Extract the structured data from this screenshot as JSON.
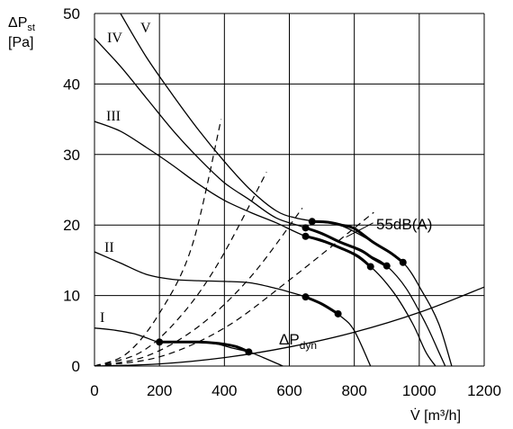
{
  "chart_data": {
    "type": "line",
    "title": "",
    "xlabel_main": "V̇",
    "xlabel_unit": "[m³/h]",
    "ylabel_line1_main": "ΔP",
    "ylabel_line1_sub": "st",
    "ylabel_line2": "[Pa]",
    "xlim": [
      0,
      1200
    ],
    "ylim": [
      0,
      50
    ],
    "xticks": [
      0,
      200,
      400,
      600,
      800,
      1000,
      1200
    ],
    "yticks": [
      0,
      10,
      20,
      30,
      40,
      50
    ],
    "grid": true,
    "series": [
      {
        "name": "I",
        "x": [
          0,
          60,
          120,
          160,
          200,
          260,
          320,
          380,
          420,
          475,
          520,
          560,
          580
        ],
        "y": [
          5.4,
          5.1,
          4.6,
          4.0,
          3.4,
          3.4,
          3.4,
          3.1,
          2.6,
          2.0,
          1.2,
          0.4,
          0
        ]
      },
      {
        "name": "II",
        "x": [
          0,
          80,
          160,
          240,
          320,
          400,
          480,
          560,
          600,
          650,
          700,
          760,
          800,
          850
        ],
        "y": [
          16.2,
          14.6,
          13.0,
          12.3,
          12.1,
          12.0,
          11.8,
          11.0,
          10.5,
          9.8,
          8.8,
          7.0,
          5.0,
          0
        ]
      },
      {
        "name": "III",
        "x": [
          0,
          80,
          160,
          240,
          320,
          400,
          480,
          560,
          650,
          760,
          850,
          920,
          980,
          1020,
          1050
        ],
        "y": [
          34.7,
          33.3,
          31.0,
          28.5,
          25.8,
          23.5,
          21.8,
          20.3,
          18.4,
          16.7,
          14.1,
          10.5,
          6.0,
          2.0,
          0
        ]
      },
      {
        "name": "IV",
        "x": [
          0,
          80,
          160,
          240,
          320,
          400,
          480,
          560,
          650,
          760,
          850,
          900,
          960,
          1020,
          1060,
          1080
        ],
        "y": [
          46.5,
          42.5,
          38.0,
          33.5,
          29.5,
          26.0,
          23.5,
          21.0,
          19.6,
          17.5,
          15.6,
          14.2,
          11.0,
          6.0,
          2.0,
          0
        ]
      },
      {
        "name": "V",
        "x": [
          80,
          160,
          240,
          320,
          400,
          480,
          560,
          620,
          680,
          760,
          860,
          950,
          1010,
          1060,
          1100
        ],
        "y": [
          50.0,
          43.8,
          38.5,
          33.5,
          29.0,
          25.0,
          22.0,
          21.0,
          20.5,
          19.9,
          17.5,
          14.7,
          10.5,
          6.0,
          0
        ]
      },
      {
        "name": "ΔP",
        "name_sub": "dyn",
        "x": [
          0,
          200,
          400,
          600,
          800,
          1000,
          1200
        ],
        "y": [
          0,
          0.3,
          1.2,
          2.7,
          4.8,
          7.6,
          11.2
        ]
      }
    ],
    "bold_segments": [
      {
        "curve": "I",
        "x": [
          200,
          240,
          280,
          320,
          360,
          400,
          440,
          475
        ],
        "y": [
          3.4,
          3.4,
          3.4,
          3.4,
          3.3,
          3.1,
          2.7,
          2.0
        ]
      },
      {
        "curve": "II",
        "x": [
          650,
          700,
          750
        ],
        "y": [
          9.8,
          8.8,
          7.4
        ]
      },
      {
        "curve": "III",
        "x": [
          650,
          700,
          760,
          810,
          850
        ],
        "y": [
          18.4,
          17.8,
          16.7,
          15.6,
          14.1
        ]
      },
      {
        "curve": "IV",
        "x": [
          650,
          700,
          760,
          820,
          860,
          900
        ],
        "y": [
          19.6,
          18.8,
          17.5,
          16.4,
          15.2,
          14.2
        ]
      },
      {
        "curve": "V",
        "x": [
          670,
          720,
          760,
          800,
          860,
          910,
          950
        ],
        "y": [
          20.5,
          20.4,
          20.0,
          19.5,
          17.5,
          16.1,
          14.7
        ]
      }
    ],
    "dots": [
      {
        "x": 200,
        "y": 3.4
      },
      {
        "x": 475,
        "y": 2.0
      },
      {
        "x": 650,
        "y": 9.8
      },
      {
        "x": 750,
        "y": 7.4
      },
      {
        "x": 650,
        "y": 18.4
      },
      {
        "x": 850,
        "y": 14.1
      },
      {
        "x": 650,
        "y": 19.6
      },
      {
        "x": 900,
        "y": 14.2
      },
      {
        "x": 670,
        "y": 20.5
      },
      {
        "x": 950,
        "y": 14.7
      }
    ],
    "system_curves": [
      {
        "x": [
          0,
          100,
          200,
          300,
          390
        ],
        "y": [
          0,
          1.8,
          7.5,
          17.0,
          35.0
        ]
      },
      {
        "x": [
          0,
          140,
          260,
          380,
          530
        ],
        "y": [
          0,
          1.9,
          6.8,
          14.5,
          27.5
        ]
      },
      {
        "x": [
          0,
          160,
          320,
          480,
          640
        ],
        "y": [
          0,
          1.4,
          5.6,
          12.6,
          22.4
        ]
      },
      {
        "x": [
          0,
          200,
          400,
          600,
          860
        ],
        "y": [
          0,
          1.3,
          5.4,
          12.2,
          21.8
        ]
      }
    ],
    "annotations": {
      "curve_I": "I",
      "curve_II": "II",
      "curve_III": "III",
      "curve_IV": "IV",
      "curve_V": "V",
      "noise_label": "55dB(A)",
      "dyn_main": "ΔP",
      "dyn_sub": "dyn"
    }
  }
}
